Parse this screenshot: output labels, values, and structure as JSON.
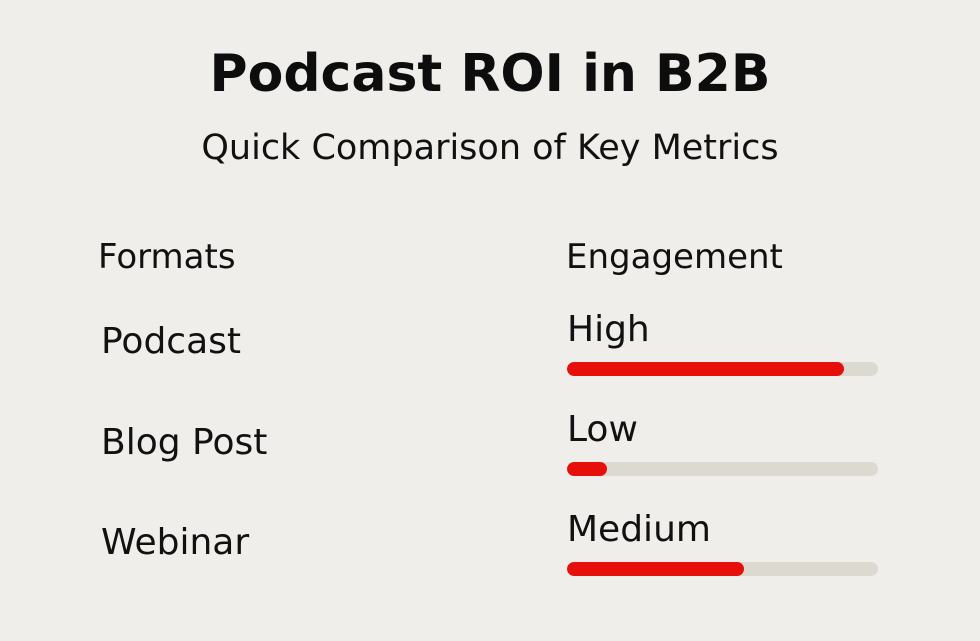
{
  "header": {
    "title": "Podcast ROI in B2B",
    "subtitle": "Quick Comparison of Key Metrics"
  },
  "columns": {
    "formats": "Formats",
    "engagement": "Engagement"
  },
  "colors": {
    "background": "#efeeeb",
    "bar_fill": "#e60f0a",
    "bar_track": "#dcd9d1"
  },
  "rows": [
    {
      "format": "Podcast",
      "level": "High",
      "percent": 89
    },
    {
      "format": "Blog Post",
      "level": "Low",
      "percent": 13
    },
    {
      "format": "Webinar",
      "level": "Medium",
      "percent": 57
    }
  ],
  "chart_data": {
    "type": "bar",
    "orientation": "horizontal",
    "title": "Podcast ROI in B2B",
    "subtitle": "Quick Comparison of Key Metrics",
    "categories": [
      "Podcast",
      "Blog Post",
      "Webinar"
    ],
    "series": [
      {
        "name": "Engagement",
        "values": [
          89,
          13,
          57
        ],
        "labels": [
          "High",
          "Low",
          "Medium"
        ]
      }
    ],
    "xlabel": "Engagement",
    "ylabel": "Formats",
    "xlim": [
      0,
      100
    ],
    "grid": false,
    "legend": "none"
  }
}
